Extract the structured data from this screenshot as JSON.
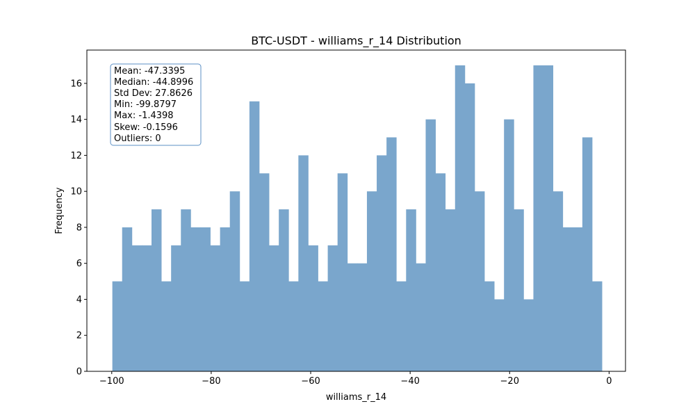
{
  "chart_data": {
    "type": "histogram",
    "title": "BTC-USDT - williams_r_14 Distribution",
    "xlabel": "williams_r_14",
    "ylabel": "Frequency",
    "xlim": [
      -105,
      3.3
    ],
    "ylim": [
      0,
      17.85
    ],
    "x_ticks": [
      -100,
      -80,
      -60,
      -40,
      -20,
      0
    ],
    "x_tick_labels": [
      "−100",
      "−80",
      "−60",
      "−40",
      "−20",
      "0"
    ],
    "y_ticks": [
      0,
      2,
      4,
      6,
      8,
      10,
      12,
      14,
      16
    ],
    "y_tick_labels": [
      "0",
      "2",
      "4",
      "6",
      "8",
      "10",
      "12",
      "14",
      "16"
    ],
    "bin_range": [
      -99.8797,
      -1.4398
    ],
    "bin_count": 50,
    "counts": [
      5,
      8,
      7,
      7,
      9,
      5,
      7,
      9,
      8,
      8,
      7,
      8,
      10,
      5,
      15,
      11,
      7,
      9,
      5,
      12,
      7,
      5,
      7,
      11,
      6,
      6,
      10,
      12,
      13,
      5,
      9,
      6,
      14,
      11,
      9,
      17,
      16,
      10,
      5,
      4,
      14,
      9,
      4,
      17,
      17,
      10,
      8,
      8,
      13,
      5
    ],
    "bar_color": "#7aa6cc",
    "grid": false,
    "stats_box": {
      "position": "top-left",
      "lines": [
        "Mean: -47.3395",
        "Median: -44.8996",
        "Std Dev: 27.8626",
        "Min: -99.8797",
        "Max: -1.4398",
        "Skew: -0.1596",
        "Outliers: 0"
      ],
      "border_color": "#5b8fc4"
    }
  }
}
